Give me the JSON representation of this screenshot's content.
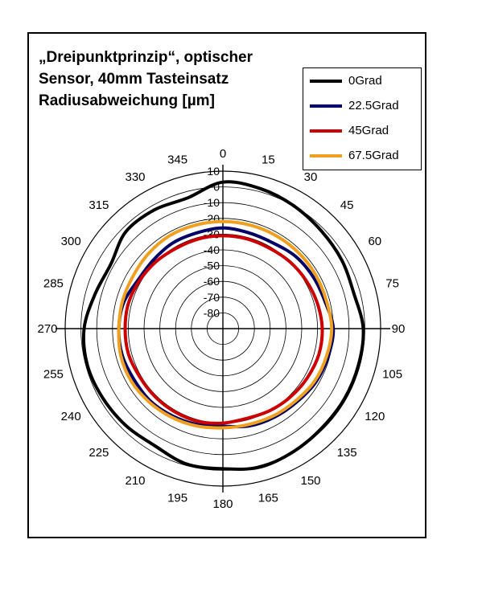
{
  "title_lines": [
    "„Dreipunktprinzip“, optischer",
    "Sensor, 40mm Tasteinsatz",
    "Radiusabweichung [µm]"
  ],
  "chart_data": {
    "type": "line",
    "subtype": "polar",
    "title": "„Dreipunktprinzip“, optischer Sensor, 40mm Tasteinsatz Radiusabweichung [µm]",
    "angle_ticks": [
      "0",
      "15",
      "30",
      "45",
      "60",
      "75",
      "90",
      "105",
      "120",
      "135",
      "150",
      "165",
      "180",
      "195",
      "210",
      "225",
      "240",
      "255",
      "270",
      "285",
      "300",
      "315",
      "330",
      "345"
    ],
    "radial_ticks": [
      "10",
      "0",
      "-10",
      "-20",
      "-30",
      "-40",
      "-50",
      "-60",
      "-70",
      "-80"
    ],
    "rlim": [
      -90,
      10
    ],
    "angle_unit": "deg",
    "grid": true,
    "legend_position": "top-right",
    "angles": [
      0,
      15,
      30,
      45,
      60,
      75,
      90,
      105,
      120,
      135,
      150,
      165,
      180,
      195,
      210,
      225,
      240,
      255,
      270,
      285,
      300,
      315,
      330,
      345,
      360
    ],
    "series": [
      {
        "name": "0Grad",
        "color": "#000000",
        "values": [
          3,
          2,
          0,
          -2,
          -3,
          -4,
          -1,
          -1,
          -1,
          -1,
          0,
          1,
          -1,
          -1,
          -4,
          -3,
          -2,
          -1,
          -2,
          -6,
          -8,
          -3,
          -3,
          -4,
          3
        ]
      },
      {
        "name": "22.5Grad",
        "color": "#000066",
        "values": [
          -26,
          -27,
          -27,
          -25,
          -24,
          -23,
          -20,
          -21,
          -22,
          -24,
          -25,
          -26,
          -28,
          -27,
          -26,
          -25,
          -25,
          -24,
          -24,
          -25,
          -28,
          -28,
          -27,
          -27,
          -26
        ]
      },
      {
        "name": "45Grad",
        "color": "#cc0000",
        "values": [
          -31,
          -31,
          -31,
          -30,
          -29,
          -28,
          -27,
          -27,
          -28,
          -29,
          -30,
          -31,
          -30,
          -29,
          -29,
          -29,
          -29,
          -28,
          -28,
          -28,
          -29,
          -30,
          -31,
          -31,
          -31
        ]
      },
      {
        "name": "67.5Grad",
        "color": "#f0a020",
        "values": [
          -22,
          -22,
          -22,
          -22,
          -22,
          -22,
          -21,
          -22,
          -23,
          -25,
          -26,
          -27,
          -27,
          -26,
          -25,
          -24,
          -23,
          -23,
          -24,
          -24,
          -24,
          -23,
          -22,
          -22,
          -22
        ]
      }
    ]
  }
}
